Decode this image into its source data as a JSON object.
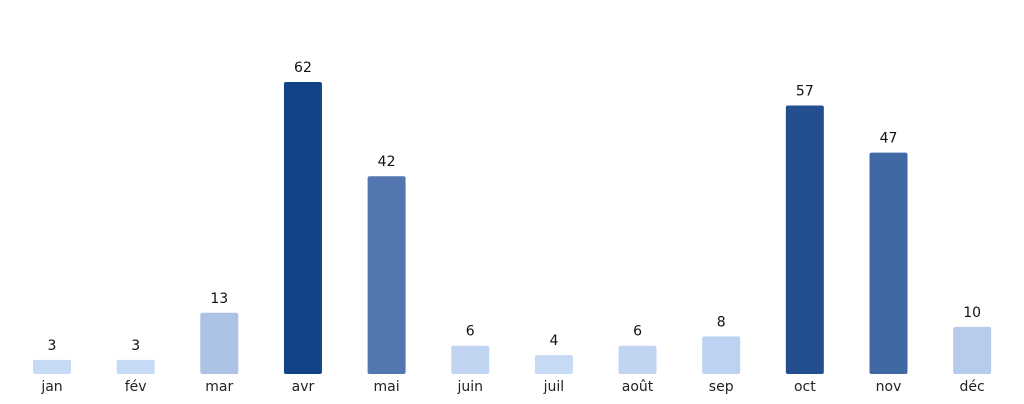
{
  "chart_data": {
    "type": "bar",
    "categories": [
      "jan",
      "fév",
      "mar",
      "avr",
      "mai",
      "juin",
      "juil",
      "août",
      "sep",
      "oct",
      "nov",
      "déc"
    ],
    "values": [
      3,
      3,
      13,
      62,
      42,
      6,
      4,
      6,
      8,
      57,
      47,
      10
    ],
    "colors": [
      "#c6d9f5",
      "#c6d9f5",
      "#adc3e6",
      "#134387",
      "#5277b0",
      "#c1d5f3",
      "#c6d9f5",
      "#c1d5f3",
      "#bdd1f0",
      "#234f91",
      "#4068a3",
      "#b7cbeb"
    ],
    "title": "",
    "xlabel": "",
    "ylabel": "",
    "ylim": [
      0,
      62
    ],
    "grid": false,
    "legend": "none",
    "data_labels": true
  }
}
